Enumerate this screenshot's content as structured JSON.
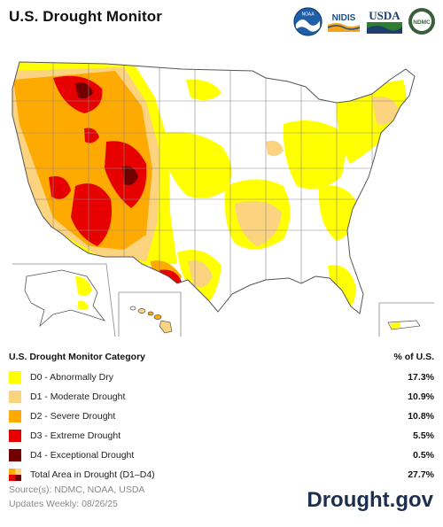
{
  "header": {
    "title": "U.S. Drought Monitor",
    "logos": [
      {
        "name": "noaa-logo",
        "text": "NOAA"
      },
      {
        "name": "nidis-logo",
        "text": "NIDIS"
      },
      {
        "name": "usda-logo",
        "text": "USDA"
      },
      {
        "name": "ndmc-logo",
        "text": "NDMC"
      }
    ]
  },
  "colors": {
    "d0": "#ffff00",
    "d1": "#fcd37f",
    "d2": "#ffaa00",
    "d3": "#e60000",
    "d4": "#730000",
    "map_outline": "#7a7a7a",
    "background": "#ffffff"
  },
  "legend": {
    "heading": "U.S. Drought Monitor Category",
    "pct_heading": "% of U.S.",
    "items": [
      {
        "label": "D0 - Abnormally Dry",
        "pct": "17.3%",
        "color": "#ffff00"
      },
      {
        "label": "D1 - Moderate Drought",
        "pct": "10.9%",
        "color": "#fcd37f"
      },
      {
        "label": "D2 - Severe Drought",
        "pct": "10.8%",
        "color": "#ffaa00"
      },
      {
        "label": "D3 - Extreme Drought",
        "pct": "5.5%",
        "color": "#e60000"
      },
      {
        "label": "D4 - Exceptional Drought",
        "pct": "0.5%",
        "color": "#730000"
      }
    ],
    "total": {
      "label": "Total Area in Drought (D1–D4)",
      "pct": "27.7%"
    }
  },
  "footer": {
    "source": "Source(s): NDMC, NOAA, USDA",
    "updated": "Updates Weekly: 08/26/25",
    "brand": "Drought.gov"
  }
}
